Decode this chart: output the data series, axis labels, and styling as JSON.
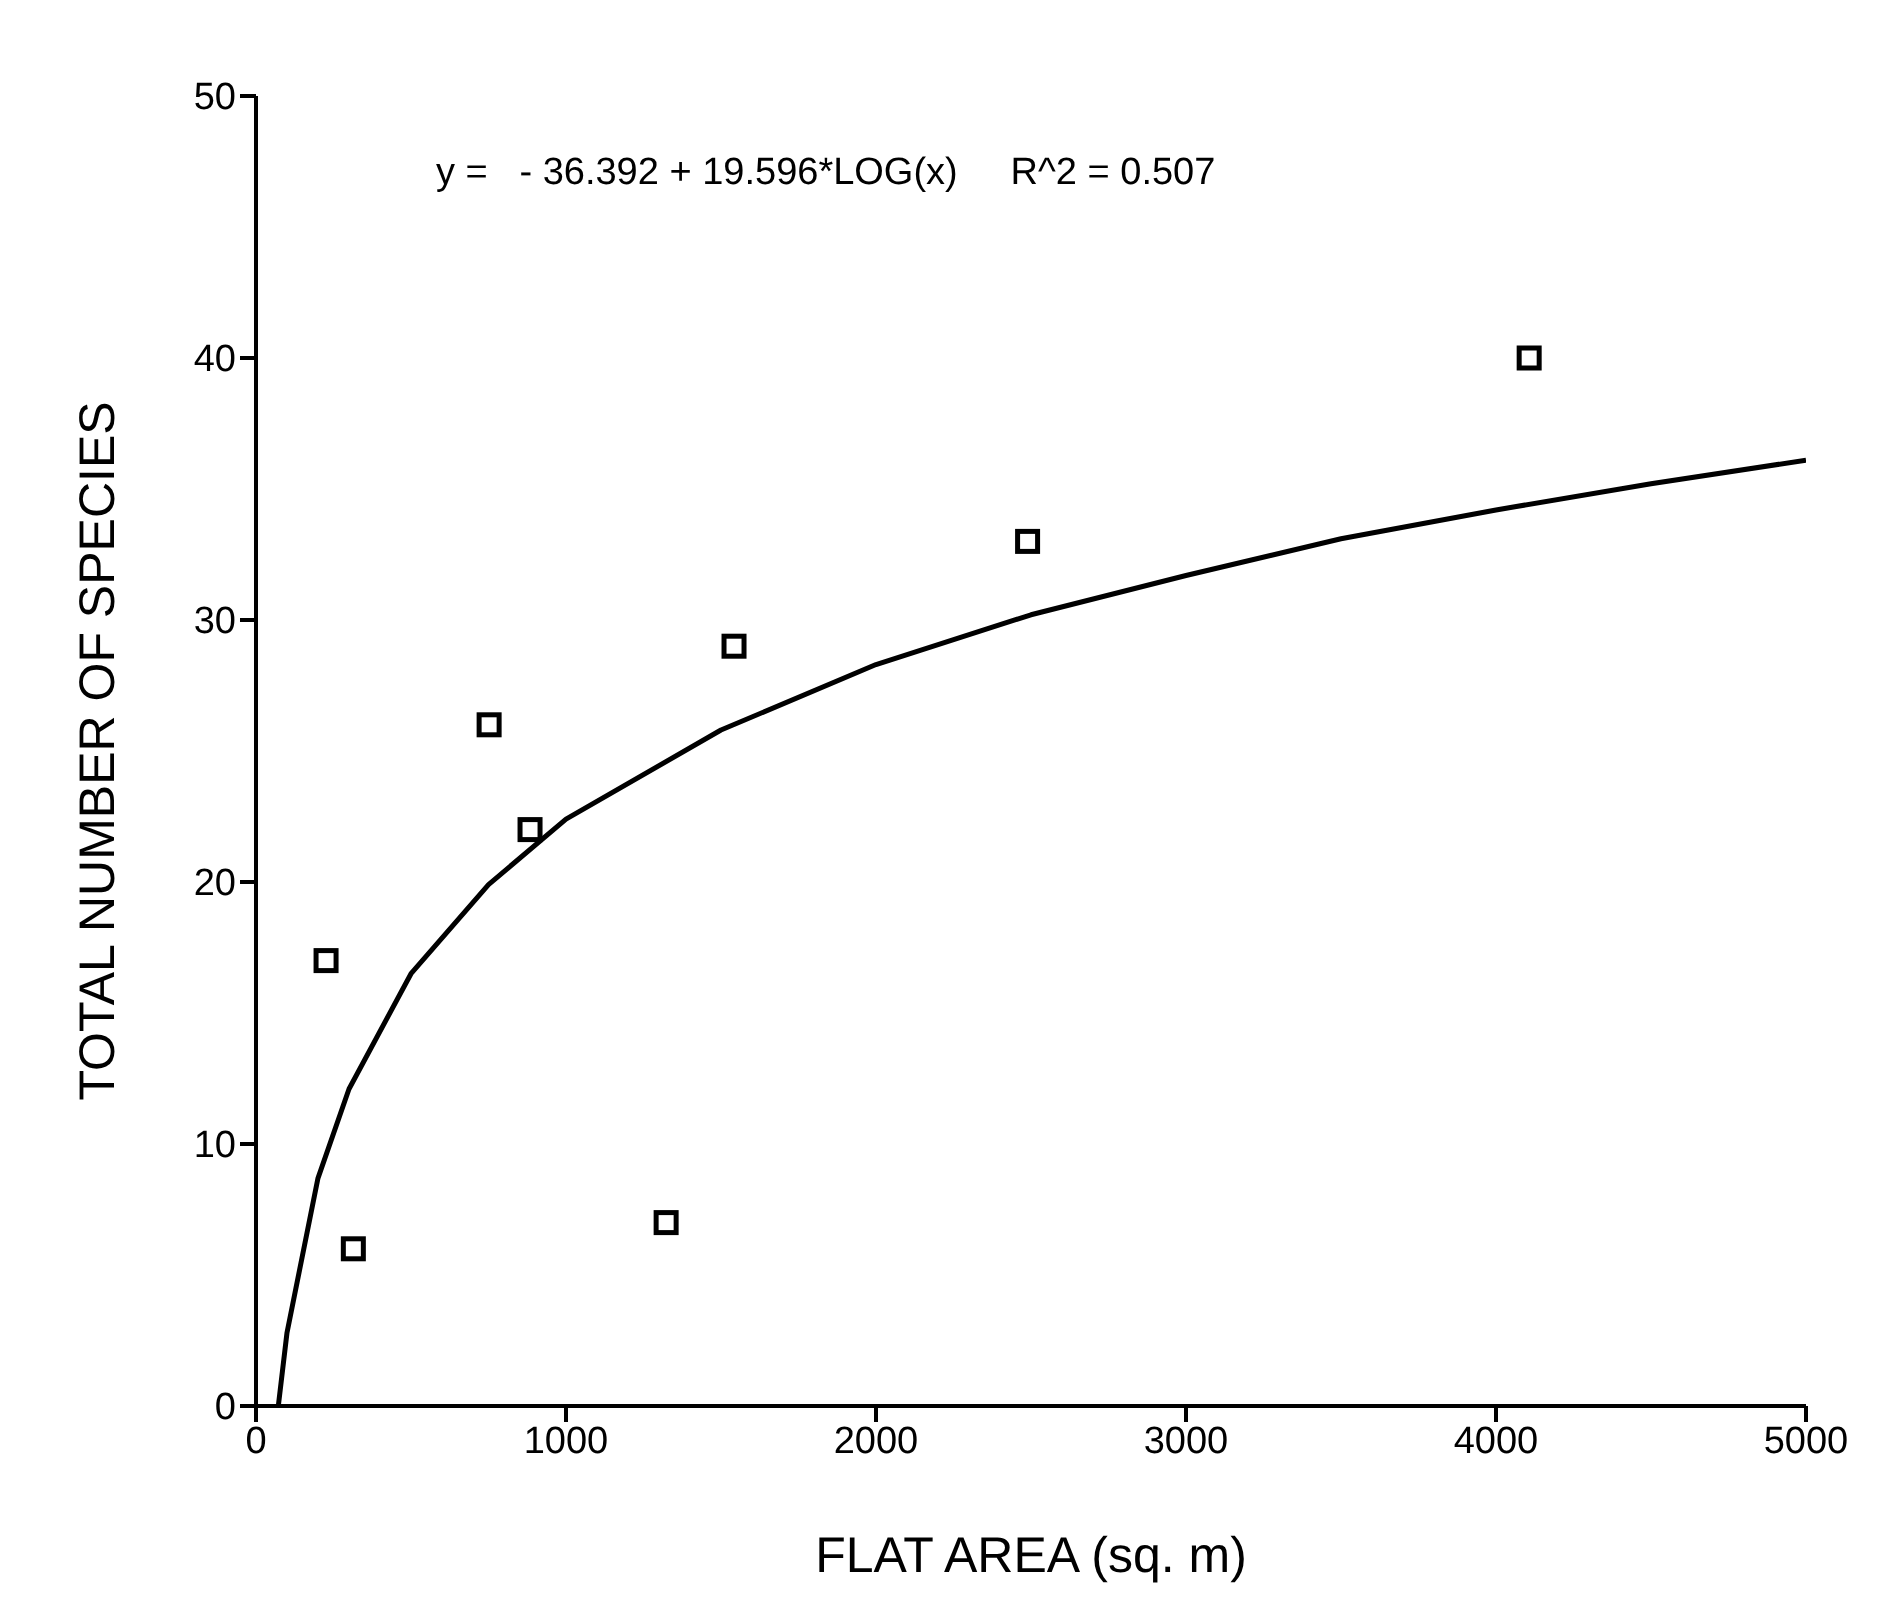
{
  "chart_data": {
    "type": "scatter",
    "xlabel": "FLAT AREA (sq. m)",
    "ylabel": "TOTAL NUMBER OF SPECIES",
    "annotations": [
      "y =   - 36.392 + 19.596*LOG(x)     R^2 = 0.507"
    ],
    "xlim": [
      0,
      5000
    ],
    "xticks": [
      0,
      1000,
      2000,
      3000,
      4000,
      5000
    ],
    "ylim": [
      0,
      50
    ],
    "yticks": [
      0,
      10,
      20,
      30,
      40,
      50
    ],
    "grid": false,
    "marker": "square",
    "series": [
      {
        "color": "#000000",
        "x": [
          226,
          314,
          752,
          884,
          1323,
          1542,
          2489,
          4107
        ],
        "values": [
          17,
          6,
          26,
          22,
          7,
          29,
          33,
          40
        ]
      },
      {
        "type": "line",
        "color": "#000000",
        "marker": "none",
        "line_style": "solid",
        "x": [
          72,
          100,
          200,
          300,
          500,
          750,
          1000,
          1500,
          2000,
          2500,
          3000,
          3500,
          4000,
          4500,
          5000
        ],
        "values": [
          0,
          2.8,
          8.7,
          12.1,
          16.5,
          19.9,
          22.4,
          25.8,
          28.3,
          30.2,
          31.7,
          33.1,
          34.2,
          35.2,
          36.1
        ]
      }
    ]
  }
}
